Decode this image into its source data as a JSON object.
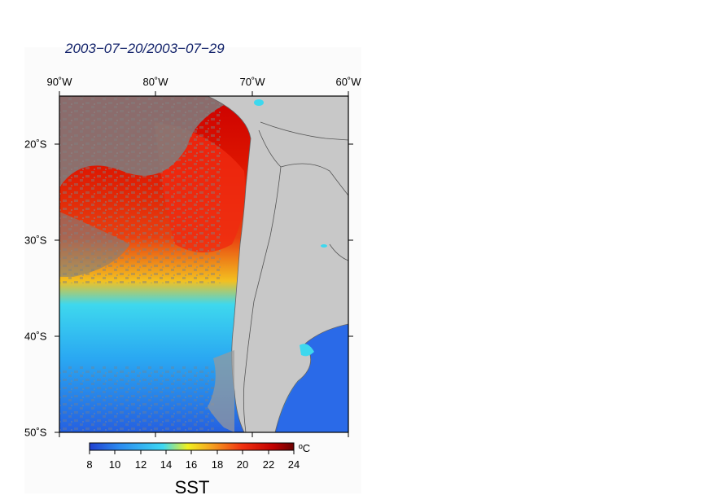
{
  "title": "2003−07−20/2003−07−29",
  "map": {
    "variable": "SST",
    "units": "ºC",
    "lon_ticks": [
      "90˚W",
      "80˚W",
      "70˚W",
      "60˚W"
    ],
    "lat_ticks": [
      "20˚S",
      "30˚S",
      "40˚S",
      "50˚S"
    ],
    "lon_range": [
      -90,
      -60
    ],
    "lat_range": [
      -50,
      -15
    ],
    "land_color": "#c8c8c8",
    "nodata_color": "#7f7f7f"
  },
  "colorbar": {
    "ticks": [
      "8",
      "10",
      "12",
      "14",
      "16",
      "18",
      "20",
      "22",
      "24"
    ],
    "range": [
      8,
      24
    ],
    "colors": [
      "#2040d0",
      "#2b8cf0",
      "#3dd8f2",
      "#f0f020",
      "#f5a020",
      "#f03010",
      "#c00000",
      "#6a0000"
    ]
  }
}
